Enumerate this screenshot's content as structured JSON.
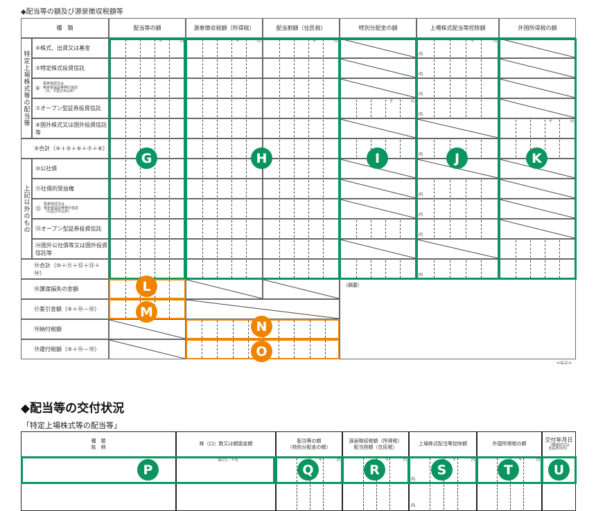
{
  "section1": {
    "title": "◆配当等の額及び源泉徴収税額等",
    "headers": [
      "種　類",
      "配当等の額",
      "源泉徴収税額（所得税）",
      "配当割額（住民税）",
      "特別分配金の額",
      "上場株式配当等控除額",
      "外国所得税の額"
    ],
    "group_labels": [
      "特定上場株式等の配当等",
      "上記以外のもの"
    ],
    "rows": [
      {
        "label": "④株式、出資又は基金"
      },
      {
        "label": "⑤特定株式投資信託"
      },
      {
        "num": "⑥",
        "label": "投資信託又は\n特定受益証券発行信託\n（⑤、⑦及び⑧以外）"
      },
      {
        "label": "⑦オープン型証券投資信託"
      },
      {
        "label": "⑧国外株式又は国外投資信託等"
      },
      {
        "label": "⑨合計（④＋⑤＋⑥＋⑦＋⑧）"
      },
      {
        "label": "⑩公社債"
      },
      {
        "label": "⑪社債的受益権"
      },
      {
        "num": "⑫",
        "label": "投資信託又は\n特定受益証券発行信託\n（⑬及び⑭以外）"
      },
      {
        "label": "⑬オープン型証券投資信託"
      },
      {
        "label": "⑭国外公社債等又は国外投資信託等"
      },
      {
        "label": "⑮合計（⑩＋⑪＋⑫＋⑬＋⑭）"
      },
      {
        "label": "⑯譲渡損失の金額"
      },
      {
        "label": "⑰差引金額（⑨＋⑮－⑯）"
      },
      {
        "label": "⑱納付税額"
      },
      {
        "label": "⑲還付税額（⑨＋⑮－⑱）"
      }
    ],
    "remarks_label": "（摘要）",
    "end_note": "<以上>"
  },
  "units": {
    "thousand": "千",
    "yen": "円",
    "uchi": "内",
    "shares": "株(口)・千円"
  },
  "section2": {
    "title": "◆配当等の交付状況",
    "subtitle": "「特定上場株式等の配当等」",
    "headers": [
      "種　類\n銘　柄",
      "株（口）数又は額面金額",
      "配当等の額\n（特別分配金の額）",
      "源泉徴収税額（所得税）\n配当割額（住民税）",
      "上場株式配当等控除額",
      "外国所得税の額",
      "交付年月日"
    ],
    "date_note": "（償還日又は\n支払年月日）"
  },
  "badges": {
    "G": "G",
    "H": "H",
    "I": "I",
    "J": "J",
    "K": "K",
    "L": "L",
    "M": "M",
    "N": "N",
    "O": "O",
    "P": "P",
    "Q": "Q",
    "R": "R",
    "S": "S",
    "T": "T",
    "U": "U"
  },
  "colors": {
    "green": "#0a9460",
    "orange": "#f08300"
  }
}
